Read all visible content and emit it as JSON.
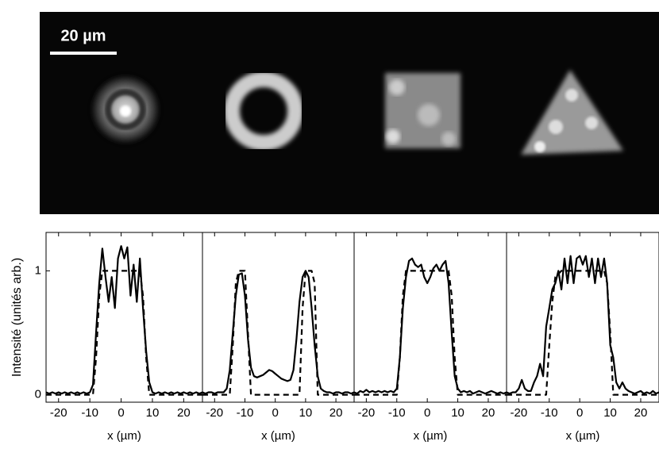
{
  "image": {
    "scale_bar": "20 µm"
  },
  "chart_data": [
    {
      "type": "line",
      "ylabel": "Intensité (unités arb.)",
      "xlabel": "x (µm)",
      "xlim": [
        -24,
        26
      ],
      "xticks": [
        -20,
        -10,
        0,
        10,
        20
      ],
      "ylim": [
        -0.06,
        1.31
      ],
      "yticks": [
        0,
        1
      ],
      "series": [
        {
          "color": "#000000",
          "dashed": false,
          "x": [
            -24,
            -23,
            -22,
            -21,
            -20,
            -19,
            -18,
            -17,
            -16,
            -15,
            -14,
            -13,
            -12,
            -11,
            -10,
            -9,
            -8,
            -7,
            -6,
            -5,
            -4,
            -3,
            -2,
            -1,
            0,
            1,
            2,
            3,
            4,
            5,
            6,
            7,
            8,
            9,
            10,
            11,
            12,
            13,
            14,
            15,
            16,
            17,
            18,
            19,
            20,
            21,
            22,
            23,
            24,
            25,
            26
          ],
          "values": [
            0.02,
            0.01,
            0.02,
            0.01,
            0.02,
            0.01,
            0.02,
            0.01,
            0.02,
            0.01,
            0.02,
            0.01,
            0.02,
            0.01,
            0.02,
            0.08,
            0.5,
            0.9,
            1.18,
            0.95,
            0.75,
            0.95,
            0.7,
            1.1,
            1.2,
            1.1,
            1.19,
            0.8,
            1.05,
            0.75,
            1.1,
            0.7,
            0.35,
            0.1,
            0.02,
            0.01,
            0.02,
            0.01,
            0.02,
            0.01,
            0.02,
            0.01,
            0.02,
            0.01,
            0.02,
            0.01,
            0.02,
            0.01,
            0.02,
            0.01,
            0.02
          ]
        },
        {
          "color": "#000000",
          "dashed": true,
          "x": [
            -24,
            -9,
            -8,
            -7,
            -6,
            6,
            7,
            8,
            9,
            26
          ],
          "values": [
            0,
            0,
            0.3,
            0.8,
            1,
            1,
            0.8,
            0.3,
            0,
            0
          ]
        }
      ]
    },
    {
      "type": "line",
      "xlabel": "x (µm)",
      "xlim": [
        -24,
        26
      ],
      "xticks": [
        -20,
        -10,
        0,
        10,
        20
      ],
      "ylim": [
        -0.06,
        1.31
      ],
      "series": [
        {
          "color": "#000000",
          "dashed": false,
          "x": [
            -24,
            -23,
            -22,
            -21,
            -20,
            -19,
            -18,
            -17,
            -16,
            -15,
            -14,
            -13,
            -12,
            -11,
            -10,
            -9,
            -8,
            -7,
            -6,
            -5,
            -4,
            -3,
            -2,
            -1,
            0,
            1,
            2,
            3,
            4,
            5,
            6,
            7,
            8,
            9,
            10,
            11,
            12,
            13,
            14,
            15,
            16,
            17,
            18,
            19,
            20,
            21,
            22,
            23,
            24,
            25,
            26
          ],
          "values": [
            0.02,
            0.01,
            0.02,
            0.02,
            0.01,
            0.02,
            0.02,
            0.02,
            0.05,
            0.2,
            0.5,
            0.8,
            0.97,
            0.98,
            0.8,
            0.45,
            0.22,
            0.15,
            0.14,
            0.15,
            0.16,
            0.18,
            0.2,
            0.19,
            0.17,
            0.15,
            0.13,
            0.12,
            0.11,
            0.12,
            0.2,
            0.45,
            0.75,
            0.95,
            1.0,
            0.95,
            0.7,
            0.4,
            0.15,
            0.05,
            0.03,
            0.02,
            0.02,
            0.01,
            0.02,
            0.02,
            0.01,
            0.02,
            0.02,
            0.01,
            0.02
          ]
        },
        {
          "color": "#000000",
          "dashed": true,
          "x": [
            -24,
            -15,
            -14,
            -13,
            -12,
            -10,
            -9,
            -8,
            8,
            9,
            10,
            12,
            13,
            14,
            26
          ],
          "values": [
            0,
            0,
            0.4,
            0.9,
            1,
            1,
            0.5,
            0,
            0,
            0.7,
            1,
            1,
            0.9,
            0,
            0
          ]
        }
      ]
    },
    {
      "type": "line",
      "xlabel": "x (µm)",
      "xlim": [
        -24,
        26
      ],
      "xticks": [
        -20,
        -10,
        0,
        10,
        20
      ],
      "ylim": [
        -0.06,
        1.31
      ],
      "series": [
        {
          "color": "#000000",
          "dashed": false,
          "x": [
            -24,
            -23,
            -22,
            -21,
            -20,
            -19,
            -18,
            -17,
            -16,
            -15,
            -14,
            -13,
            -12,
            -11,
            -10,
            -9,
            -8,
            -7,
            -6,
            -5,
            -4,
            -3,
            -2,
            -1,
            0,
            1,
            2,
            3,
            4,
            5,
            6,
            7,
            8,
            9,
            10,
            11,
            12,
            13,
            14,
            15,
            16,
            17,
            18,
            19,
            20,
            21,
            22,
            23,
            24,
            25,
            26
          ],
          "values": [
            0.02,
            0.01,
            0.03,
            0.02,
            0.04,
            0.02,
            0.03,
            0.02,
            0.03,
            0.02,
            0.03,
            0.02,
            0.03,
            0.02,
            0.05,
            0.3,
            0.7,
            0.95,
            1.08,
            1.1,
            1.05,
            1.03,
            1.05,
            0.95,
            0.9,
            0.95,
            1.02,
            1.05,
            1.0,
            1.05,
            1.08,
            0.9,
            0.5,
            0.15,
            0.05,
            0.02,
            0.03,
            0.02,
            0.03,
            0.01,
            0.02,
            0.03,
            0.02,
            0.01,
            0.02,
            0.03,
            0.02,
            0.01,
            0.02,
            0.01,
            0.02
          ]
        },
        {
          "color": "#000000",
          "dashed": true,
          "x": [
            -24,
            -10,
            -9,
            -8,
            -7,
            7,
            8,
            9,
            10,
            26
          ],
          "values": [
            0,
            0,
            0.3,
            0.8,
            1,
            1,
            0.8,
            0.3,
            0,
            0
          ]
        }
      ]
    },
    {
      "type": "line",
      "xlabel": "x (µm)",
      "xlim": [
        -24,
        26
      ],
      "xticks": [
        -20,
        -10,
        0,
        10,
        20
      ],
      "ylim": [
        -0.06,
        1.31
      ],
      "series": [
        {
          "color": "#000000",
          "dashed": false,
          "x": [
            -24,
            -23,
            -22,
            -21,
            -20,
            -19,
            -18,
            -17,
            -16,
            -15,
            -14,
            -13,
            -12,
            -11,
            -10,
            -9,
            -8,
            -7,
            -6,
            -5,
            -4,
            -3,
            -2,
            -1,
            0,
            1,
            2,
            3,
            4,
            5,
            6,
            7,
            8,
            9,
            10,
            11,
            12,
            13,
            14,
            15,
            16,
            17,
            18,
            19,
            20,
            21,
            22,
            23,
            24,
            25,
            26
          ],
          "values": [
            0.02,
            0.01,
            0.02,
            0.02,
            0.05,
            0.12,
            0.05,
            0.03,
            0.03,
            0.1,
            0.15,
            0.25,
            0.15,
            0.55,
            0.7,
            0.85,
            0.9,
            1.0,
            0.85,
            1.1,
            0.9,
            1.12,
            0.9,
            1.1,
            1.12,
            1.05,
            1.12,
            0.95,
            1.1,
            0.9,
            1.1,
            0.95,
            1.1,
            0.9,
            0.4,
            0.3,
            0.1,
            0.05,
            0.1,
            0.05,
            0.03,
            0.02,
            0.01,
            0.02,
            0.03,
            0.01,
            0.02,
            0.01,
            0.03,
            0.01,
            0.02
          ]
        },
        {
          "color": "#000000",
          "dashed": true,
          "x": [
            -24,
            -11,
            -10,
            -9,
            -8,
            -6,
            8,
            9,
            10,
            11,
            26
          ],
          "values": [
            0,
            0,
            0.4,
            0.75,
            0.95,
            1,
            1,
            0.9,
            0.5,
            0,
            0
          ]
        }
      ]
    }
  ]
}
